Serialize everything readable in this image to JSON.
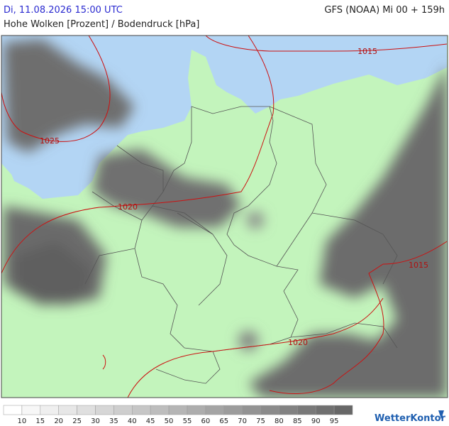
{
  "header": {
    "datetime": "Di, 11.08.2026 15:00 UTC",
    "model": "GFS (NOAA) Mi 00 + 159h",
    "subtitle": "Hohe Wolken [Prozent] / Bodendruck [hPa]"
  },
  "map": {
    "isobar_labels": [
      1015,
      1025,
      1020,
      1015,
      1020
    ]
  },
  "legend": {
    "values": [
      10,
      15,
      20,
      25,
      30,
      35,
      40,
      45,
      50,
      55,
      60,
      65,
      70,
      75,
      80,
      85,
      90,
      95
    ],
    "colors": [
      "#ffffff",
      "#f7f7f7",
      "#efefef",
      "#e7e7e7",
      "#dfdfdf",
      "#d6d6d6",
      "#cecece",
      "#c6c6c6",
      "#bdbdbd",
      "#b5b5b5",
      "#adadad",
      "#a4a4a4",
      "#9c9c9c",
      "#939393",
      "#8b8b8b",
      "#828282",
      "#797979",
      "#707070",
      "#676767"
    ]
  },
  "logo": "WetterKontor"
}
